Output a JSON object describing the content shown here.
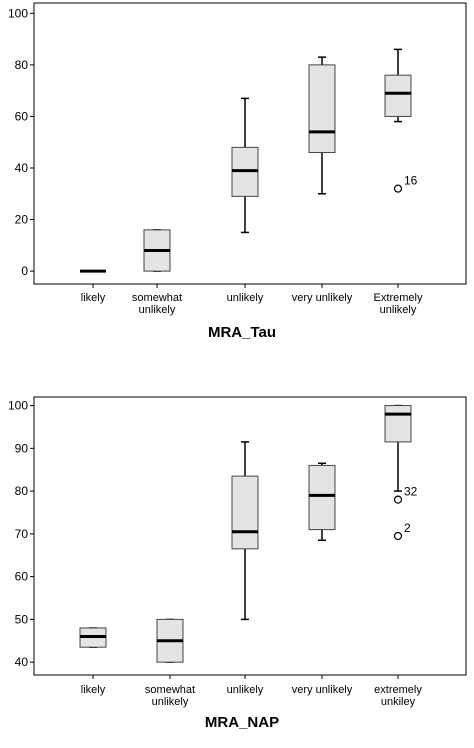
{
  "chart_data": [
    {
      "type": "boxplot",
      "xlabel": "MRA_Tau",
      "ylabel": "",
      "ylim": [
        -5,
        104
      ],
      "yticks": [
        0,
        20,
        40,
        60,
        80,
        100
      ],
      "grid": false,
      "categories": [
        {
          "label": [
            "likely"
          ],
          "box": {
            "min": 0,
            "q1": 0,
            "median": 0,
            "q3": 0,
            "max": 0
          },
          "outliers": []
        },
        {
          "label": [
            "somewhat",
            "unlikely"
          ],
          "box": {
            "min": 0,
            "q1": 0,
            "median": 8,
            "q3": 16,
            "max": 16
          },
          "outliers": []
        },
        {
          "label": [
            "unlikely"
          ],
          "box": {
            "min": 15,
            "q1": 29,
            "median": 39,
            "q3": 48,
            "max": 67
          },
          "outliers": []
        },
        {
          "label": [
            "very unlikely"
          ],
          "box": {
            "min": 30,
            "q1": 46,
            "median": 54,
            "q3": 80,
            "max": 83
          },
          "outliers": []
        },
        {
          "label": [
            "Extremely",
            "unlikely"
          ],
          "box": {
            "min": 58,
            "q1": 60,
            "median": 69,
            "q3": 76,
            "max": 86
          },
          "outliers": [
            {
              "value": 32,
              "label": "16"
            }
          ]
        }
      ]
    },
    {
      "type": "boxplot",
      "xlabel": "MRA_NAP",
      "ylabel": "",
      "ylim": [
        37,
        102
      ],
      "yticks": [
        40,
        50,
        60,
        70,
        80,
        90,
        100
      ],
      "grid": false,
      "categories": [
        {
          "label": [
            "likely"
          ],
          "box": {
            "min": 43.5,
            "q1": 43.5,
            "median": 46,
            "q3": 48,
            "max": 48
          },
          "outliers": []
        },
        {
          "label": [
            "somewhat",
            "unlikely"
          ],
          "box": {
            "min": 40,
            "q1": 40,
            "median": 45,
            "q3": 50,
            "max": 50
          },
          "outliers": []
        },
        {
          "label": [
            "unlikely"
          ],
          "box": {
            "min": 50,
            "q1": 66.5,
            "median": 70.5,
            "q3": 83.5,
            "max": 91.5
          },
          "outliers": []
        },
        {
          "label": [
            "very unlikely"
          ],
          "box": {
            "min": 68.5,
            "q1": 71,
            "median": 79,
            "q3": 86,
            "max": 86.5
          },
          "outliers": []
        },
        {
          "label": [
            "extremely",
            "unkiley"
          ],
          "box": {
            "min": 80,
            "q1": 91.5,
            "median": 98,
            "q3": 100,
            "max": 100
          },
          "outliers": [
            {
              "value": 78,
              "label": "32"
            },
            {
              "value": 69.5,
              "label": "2"
            }
          ]
        }
      ]
    }
  ],
  "colors": {
    "box_fill": "#e4e4e4",
    "stroke": "#000000",
    "background": "#ffffff"
  }
}
